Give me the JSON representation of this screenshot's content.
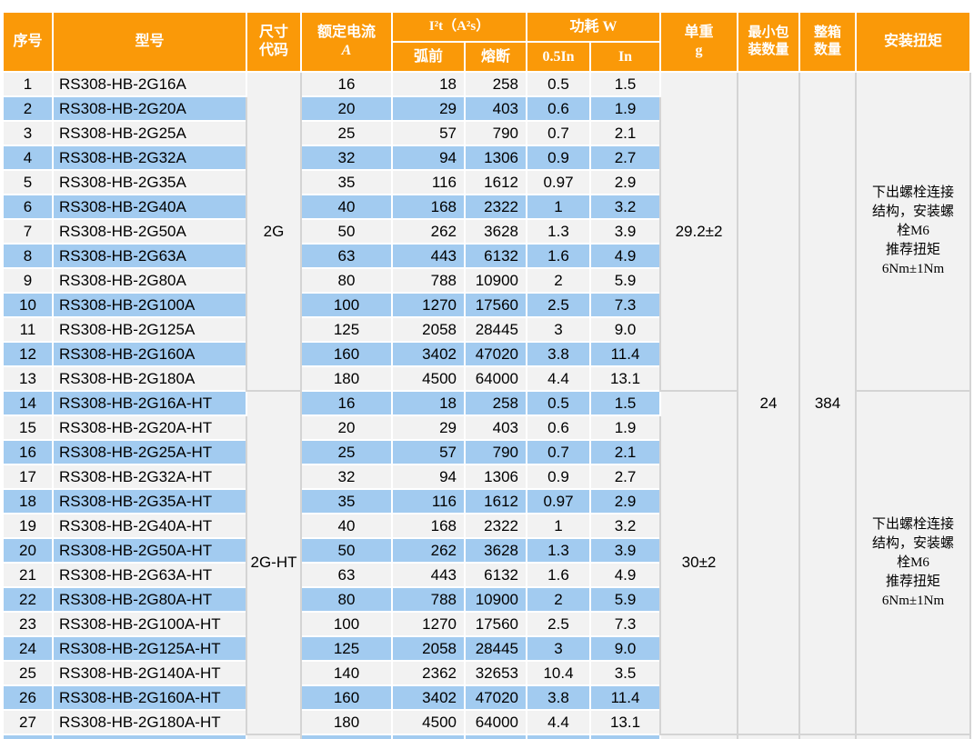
{
  "table": {
    "header": {
      "col_no": "序号",
      "col_model": "型号",
      "col_size": "尺寸\n代码",
      "col_current": "额定电流",
      "col_current_unit": "A",
      "col_i2t": "I²t（A²s）",
      "col_prearc": "弧前",
      "col_melt": "熔断",
      "col_power": "功耗 W",
      "col_power_half": "0.5In",
      "col_power_full": "In",
      "col_weight": "单重\ng",
      "col_min_pack": "最小包\n装数量",
      "col_carton": "整箱\n数量",
      "col_torque": "安装扭矩"
    },
    "groups": [
      {
        "size_code": "2G",
        "weight_g": "29.2±2",
        "torque": "下出螺栓连接结构，安装螺栓M6\n推荐扭矩\n6Nm±1Nm"
      },
      {
        "size_code": "2G-HT",
        "weight_g": "30±2",
        "torque": "下出螺栓连接结构，安装螺栓M6\n推荐扭矩\n6Nm±1Nm"
      }
    ],
    "min_pack_qty": "24",
    "carton_qty": "384",
    "rows": [
      {
        "no": "1",
        "model": "RS308-HB-2G16A",
        "current": "16",
        "prearc": "18",
        "melt": "258",
        "p_half": "0.5",
        "p_full": "1.5"
      },
      {
        "no": "2",
        "model": "RS308-HB-2G20A",
        "current": "20",
        "prearc": "29",
        "melt": "403",
        "p_half": "0.6",
        "p_full": "1.9"
      },
      {
        "no": "3",
        "model": "RS308-HB-2G25A",
        "current": "25",
        "prearc": "57",
        "melt": "790",
        "p_half": "0.7",
        "p_full": "2.1"
      },
      {
        "no": "4",
        "model": "RS308-HB-2G32A",
        "current": "32",
        "prearc": "94",
        "melt": "1306",
        "p_half": "0.9",
        "p_full": "2.7"
      },
      {
        "no": "5",
        "model": "RS308-HB-2G35A",
        "current": "35",
        "prearc": "116",
        "melt": "1612",
        "p_half": "0.97",
        "p_full": "2.9"
      },
      {
        "no": "6",
        "model": "RS308-HB-2G40A",
        "current": "40",
        "prearc": "168",
        "melt": "2322",
        "p_half": "1",
        "p_full": "3.2"
      },
      {
        "no": "7",
        "model": "RS308-HB-2G50A",
        "current": "50",
        "prearc": "262",
        "melt": "3628",
        "p_half": "1.3",
        "p_full": "3.9"
      },
      {
        "no": "8",
        "model": "RS308-HB-2G63A",
        "current": "63",
        "prearc": "443",
        "melt": "6132",
        "p_half": "1.6",
        "p_full": "4.9"
      },
      {
        "no": "9",
        "model": "RS308-HB-2G80A",
        "current": "80",
        "prearc": "788",
        "melt": "10900",
        "p_half": "2",
        "p_full": "5.9"
      },
      {
        "no": "10",
        "model": "RS308-HB-2G100A",
        "current": "100",
        "prearc": "1270",
        "melt": "17560",
        "p_half": "2.5",
        "p_full": "7.3"
      },
      {
        "no": "11",
        "model": "RS308-HB-2G125A",
        "current": "125",
        "prearc": "2058",
        "melt": "28445",
        "p_half": "3",
        "p_full": "9.0"
      },
      {
        "no": "12",
        "model": "RS308-HB-2G160A",
        "current": "160",
        "prearc": "3402",
        "melt": "47020",
        "p_half": "3.8",
        "p_full": "11.4"
      },
      {
        "no": "13",
        "model": "RS308-HB-2G180A",
        "current": "180",
        "prearc": "4500",
        "melt": "64000",
        "p_half": "4.4",
        "p_full": "13.1"
      },
      {
        "no": "14",
        "model": "RS308-HB-2G16A-HT",
        "current": "16",
        "prearc": "18",
        "melt": "258",
        "p_half": "0.5",
        "p_full": "1.5"
      },
      {
        "no": "15",
        "model": "RS308-HB-2G20A-HT",
        "current": "20",
        "prearc": "29",
        "melt": "403",
        "p_half": "0.6",
        "p_full": "1.9"
      },
      {
        "no": "16",
        "model": "RS308-HB-2G25A-HT",
        "current": "25",
        "prearc": "57",
        "melt": "790",
        "p_half": "0.7",
        "p_full": "2.1"
      },
      {
        "no": "17",
        "model": "RS308-HB-2G32A-HT",
        "current": "32",
        "prearc": "94",
        "melt": "1306",
        "p_half": "0.9",
        "p_full": "2.7"
      },
      {
        "no": "18",
        "model": "RS308-HB-2G35A-HT",
        "current": "35",
        "prearc": "116",
        "melt": "1612",
        "p_half": "0.97",
        "p_full": "2.9"
      },
      {
        "no": "19",
        "model": "RS308-HB-2G40A-HT",
        "current": "40",
        "prearc": "168",
        "melt": "2322",
        "p_half": "1",
        "p_full": "3.2"
      },
      {
        "no": "20",
        "model": "RS308-HB-2G50A-HT",
        "current": "50",
        "prearc": "262",
        "melt": "3628",
        "p_half": "1.3",
        "p_full": "3.9"
      },
      {
        "no": "21",
        "model": "RS308-HB-2G63A-HT",
        "current": "63",
        "prearc": "443",
        "melt": "6132",
        "p_half": "1.6",
        "p_full": "4.9"
      },
      {
        "no": "22",
        "model": "RS308-HB-2G80A-HT",
        "current": "80",
        "prearc": "788",
        "melt": "10900",
        "p_half": "2",
        "p_full": "5.9"
      },
      {
        "no": "23",
        "model": "RS308-HB-2G100A-HT",
        "current": "100",
        "prearc": "1270",
        "melt": "17560",
        "p_half": "2.5",
        "p_full": "7.3"
      },
      {
        "no": "24",
        "model": "RS308-HB-2G125A-HT",
        "current": "125",
        "prearc": "2058",
        "melt": "28445",
        "p_half": "3",
        "p_full": "9.0"
      },
      {
        "no": "25",
        "model": "RS308-HB-2G140A-HT",
        "current": "140",
        "prearc": "2362",
        "melt": "32653",
        "p_half": "10.4",
        "p_full": "3.5"
      },
      {
        "no": "26",
        "model": "RS308-HB-2G160A-HT",
        "current": "160",
        "prearc": "3402",
        "melt": "47020",
        "p_half": "3.8",
        "p_full": "11.4"
      },
      {
        "no": "27",
        "model": "RS308-HB-2G180A-HT",
        "current": "180",
        "prearc": "4500",
        "melt": "64000",
        "p_half": "4.4",
        "p_full": "13.1"
      }
    ]
  },
  "colors": {
    "header_bg": "#FA9908",
    "header_text": "#ffffff",
    "row_odd_bg": "#F2F2F2",
    "row_even_bg": "#A2CBF0",
    "merged_cell_bg": "#F2F2F2",
    "merged_border": "#D4D4D4",
    "grid_line": "#ffffff",
    "body_text": "#000000"
  }
}
